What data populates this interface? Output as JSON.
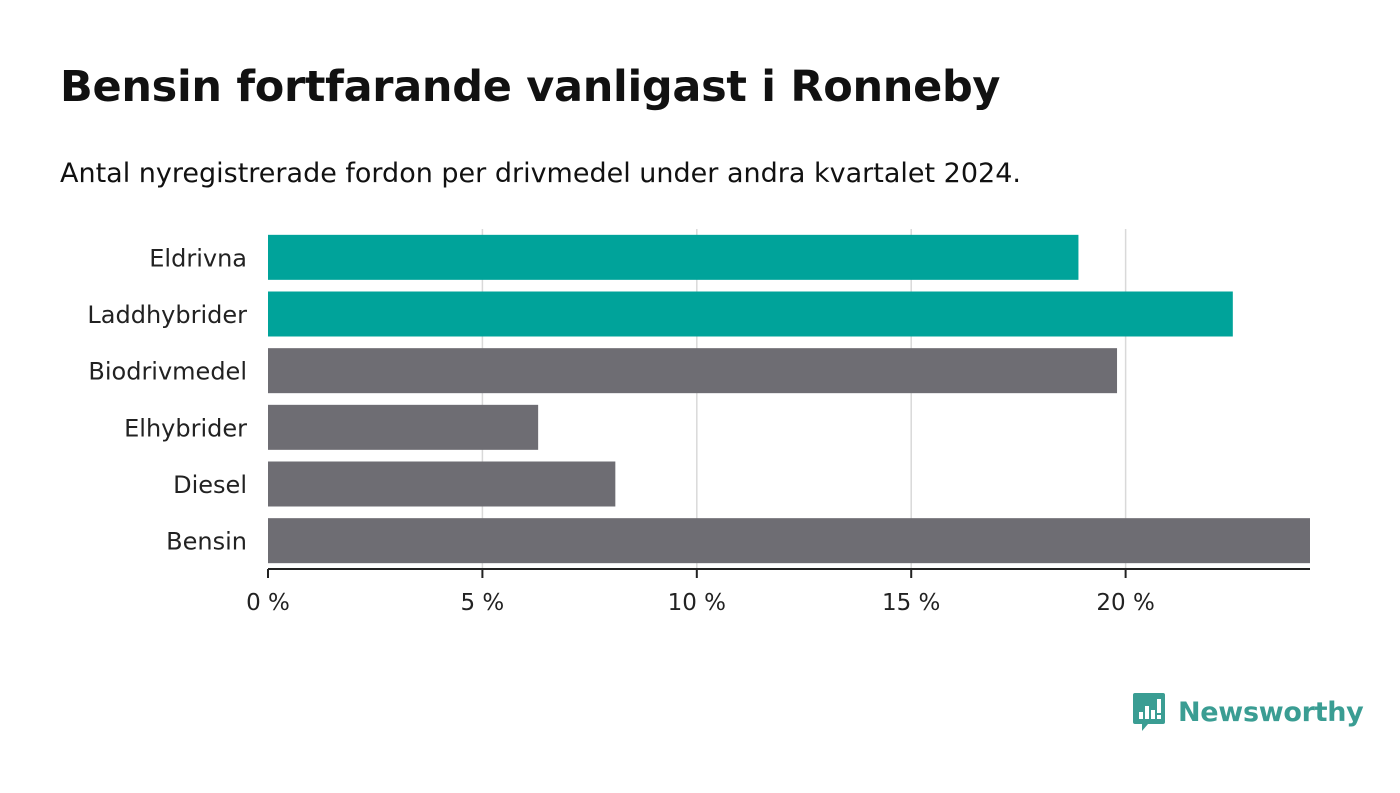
{
  "title": "Bensin fortfarande vanligast i Ronneby",
  "subtitle": "Antal nyregistrerade fordon per drivmedel under andra kvartalet 2024.",
  "brand": {
    "name": "Newsworthy",
    "color": "#3a9d93",
    "icon": "newsworthy-logo-icon"
  },
  "colors": {
    "highlight": "#00a39a",
    "default": "#6e6d73",
    "grid": "#d9d9d9",
    "axis": "#222222"
  },
  "chart_data": {
    "type": "bar",
    "orientation": "horizontal",
    "categories": [
      "Eldrivna",
      "Laddhybrider",
      "Biodrivmedel",
      "Elhybrider",
      "Diesel",
      "Bensin"
    ],
    "values": [
      18.9,
      22.5,
      19.8,
      6.3,
      8.1,
      24.3
    ],
    "highlighted": [
      true,
      true,
      false,
      false,
      false,
      false
    ],
    "xlim": [
      0,
      24.3
    ],
    "xticks": [
      0,
      5,
      10,
      15,
      20
    ],
    "xtick_labels": [
      "0 %",
      "5 %",
      "10 %",
      "15 %",
      "20 %"
    ],
    "grid": true,
    "legend": "none"
  }
}
